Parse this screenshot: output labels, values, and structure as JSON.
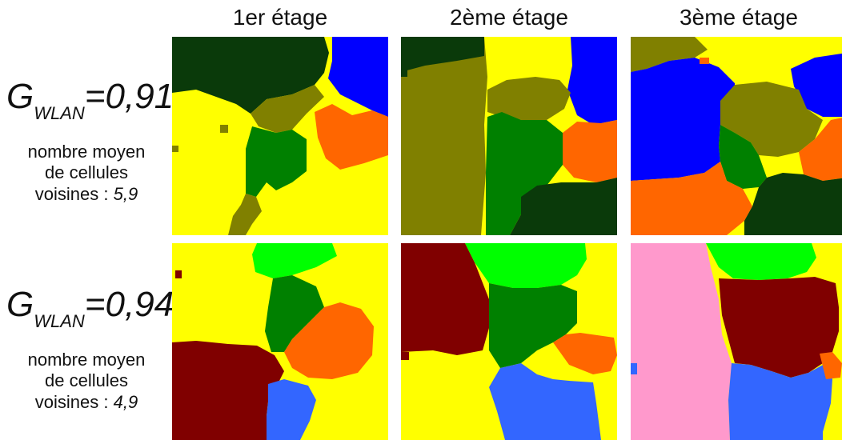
{
  "columns": [
    "1er étage",
    "2ème étage",
    "3ème étage"
  ],
  "rows": [
    {
      "g_main": "G",
      "g_sub": "WLAN",
      "g_value": "=0,91",
      "note_line1": "nombre moyen",
      "note_line2": "de cellules",
      "note_line3_prefix": "voisines : ",
      "note_value": "5,9"
    },
    {
      "g_main": "G",
      "g_sub": "WLAN",
      "g_value": "=0,94",
      "note_line1": "nombre moyen",
      "note_line2": "de cellules",
      "note_line3_prefix": "voisines : ",
      "note_value": "4,9"
    }
  ],
  "colors": {
    "yellow": "#ffff00",
    "dark_green": "#0a3a0a",
    "olive": "#808000",
    "green": "#008000",
    "blue": "#0000ff",
    "orange": "#ff6600",
    "light_green": "#00ff00",
    "maroon": "#800000",
    "cornflower": "#3366ff",
    "pink": "#ff99cc"
  }
}
